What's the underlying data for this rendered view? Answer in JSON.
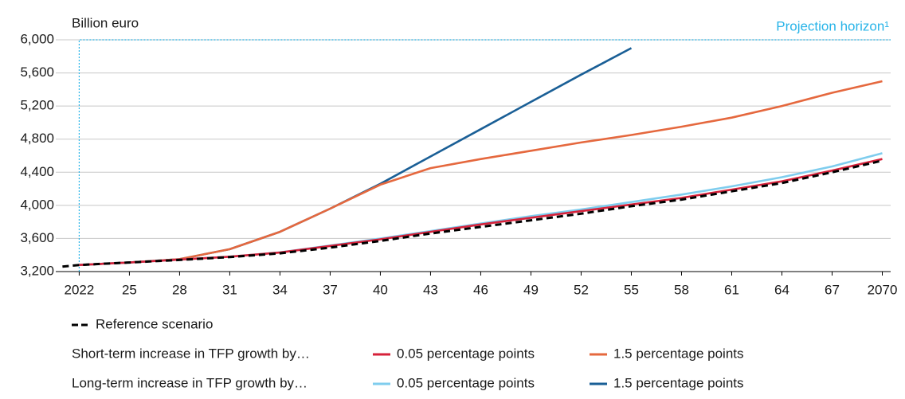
{
  "chart_data": {
    "type": "line",
    "y_axis_label": "Billion euro",
    "annotation": "Projection horizon¹",
    "projection_start": 2022,
    "x": [
      2021,
      2022,
      2025,
      2028,
      2031,
      2034,
      2037,
      2040,
      2043,
      2046,
      2049,
      2052,
      2055,
      2058,
      2061,
      2064,
      2067,
      2070
    ],
    "xlim": [
      2020.6,
      2070.5
    ],
    "xticks": [
      2022,
      {
        "value": 2025,
        "label": "25"
      },
      {
        "value": 2028,
        "label": "28"
      },
      {
        "value": 2031,
        "label": "31"
      },
      {
        "value": 2034,
        "label": "34"
      },
      {
        "value": 2037,
        "label": "37"
      },
      {
        "value": 2040,
        "label": "40"
      },
      {
        "value": 2043,
        "label": "43"
      },
      {
        "value": 2046,
        "label": "46"
      },
      {
        "value": 2049,
        "label": "49"
      },
      {
        "value": 2052,
        "label": "52"
      },
      {
        "value": 2055,
        "label": "55"
      },
      {
        "value": 2058,
        "label": "58"
      },
      {
        "value": 2061,
        "label": "61"
      },
      {
        "value": 2064,
        "label": "64"
      },
      {
        "value": 2067,
        "label": "67"
      },
      2070
    ],
    "ylim": [
      3200,
      6000
    ],
    "yticks": [
      {
        "value": 3200,
        "label": "3,200"
      },
      {
        "value": 3600,
        "label": "3,600"
      },
      {
        "value": 4000,
        "label": "4,000"
      },
      {
        "value": 4400,
        "label": "4,400"
      },
      {
        "value": 4800,
        "label": "4,800"
      },
      {
        "value": 5200,
        "label": "5,200"
      },
      {
        "value": 5600,
        "label": "5,600"
      },
      {
        "value": 6000,
        "label": "6,000"
      }
    ],
    "grid": true,
    "series": [
      {
        "name": "Reference scenario",
        "color": "#000000",
        "dashed": true,
        "values": [
          3260,
          3280,
          3310,
          3340,
          3375,
          3420,
          3490,
          3570,
          3660,
          3740,
          3820,
          3900,
          3990,
          4070,
          4170,
          4270,
          4400,
          4540
        ]
      },
      {
        "name": "0.05 percentage points",
        "color": "#d6213a",
        "values": [
          null,
          3280,
          3310,
          3345,
          3380,
          3430,
          3510,
          3590,
          3680,
          3770,
          3850,
          3930,
          4010,
          4090,
          4190,
          4290,
          4420,
          4560
        ]
      },
      {
        "name": "1.5 percentage points",
        "color": "#e5683e",
        "values": [
          null,
          3280,
          3310,
          3350,
          3470,
          3680,
          3960,
          4250,
          4450,
          4560,
          4660,
          4760,
          4850,
          4950,
          5060,
          5200,
          5360,
          5500
        ]
      },
      {
        "name": "0.05 percentage points",
        "color": "#7fcdee",
        "values": [
          null,
          3280,
          3310,
          3345,
          3380,
          3432,
          3515,
          3598,
          3690,
          3780,
          3870,
          3950,
          4040,
          4130,
          4230,
          4340,
          4470,
          4630
        ]
      },
      {
        "name": "1.5 percentage points",
        "color": "#1a5f96",
        "values": [
          null,
          3280,
          3310,
          3350,
          3470,
          3680,
          3960,
          4260,
          4590,
          4920,
          5250,
          5580,
          5900,
          null,
          null,
          null,
          null,
          null
        ]
      }
    ],
    "legend_groups": [
      {
        "label": "Short-term increase in TFP growth by…",
        "series": [
          1,
          2
        ]
      },
      {
        "label": "Long-term increase in TFP growth by…",
        "series": [
          3,
          4
        ]
      }
    ]
  }
}
